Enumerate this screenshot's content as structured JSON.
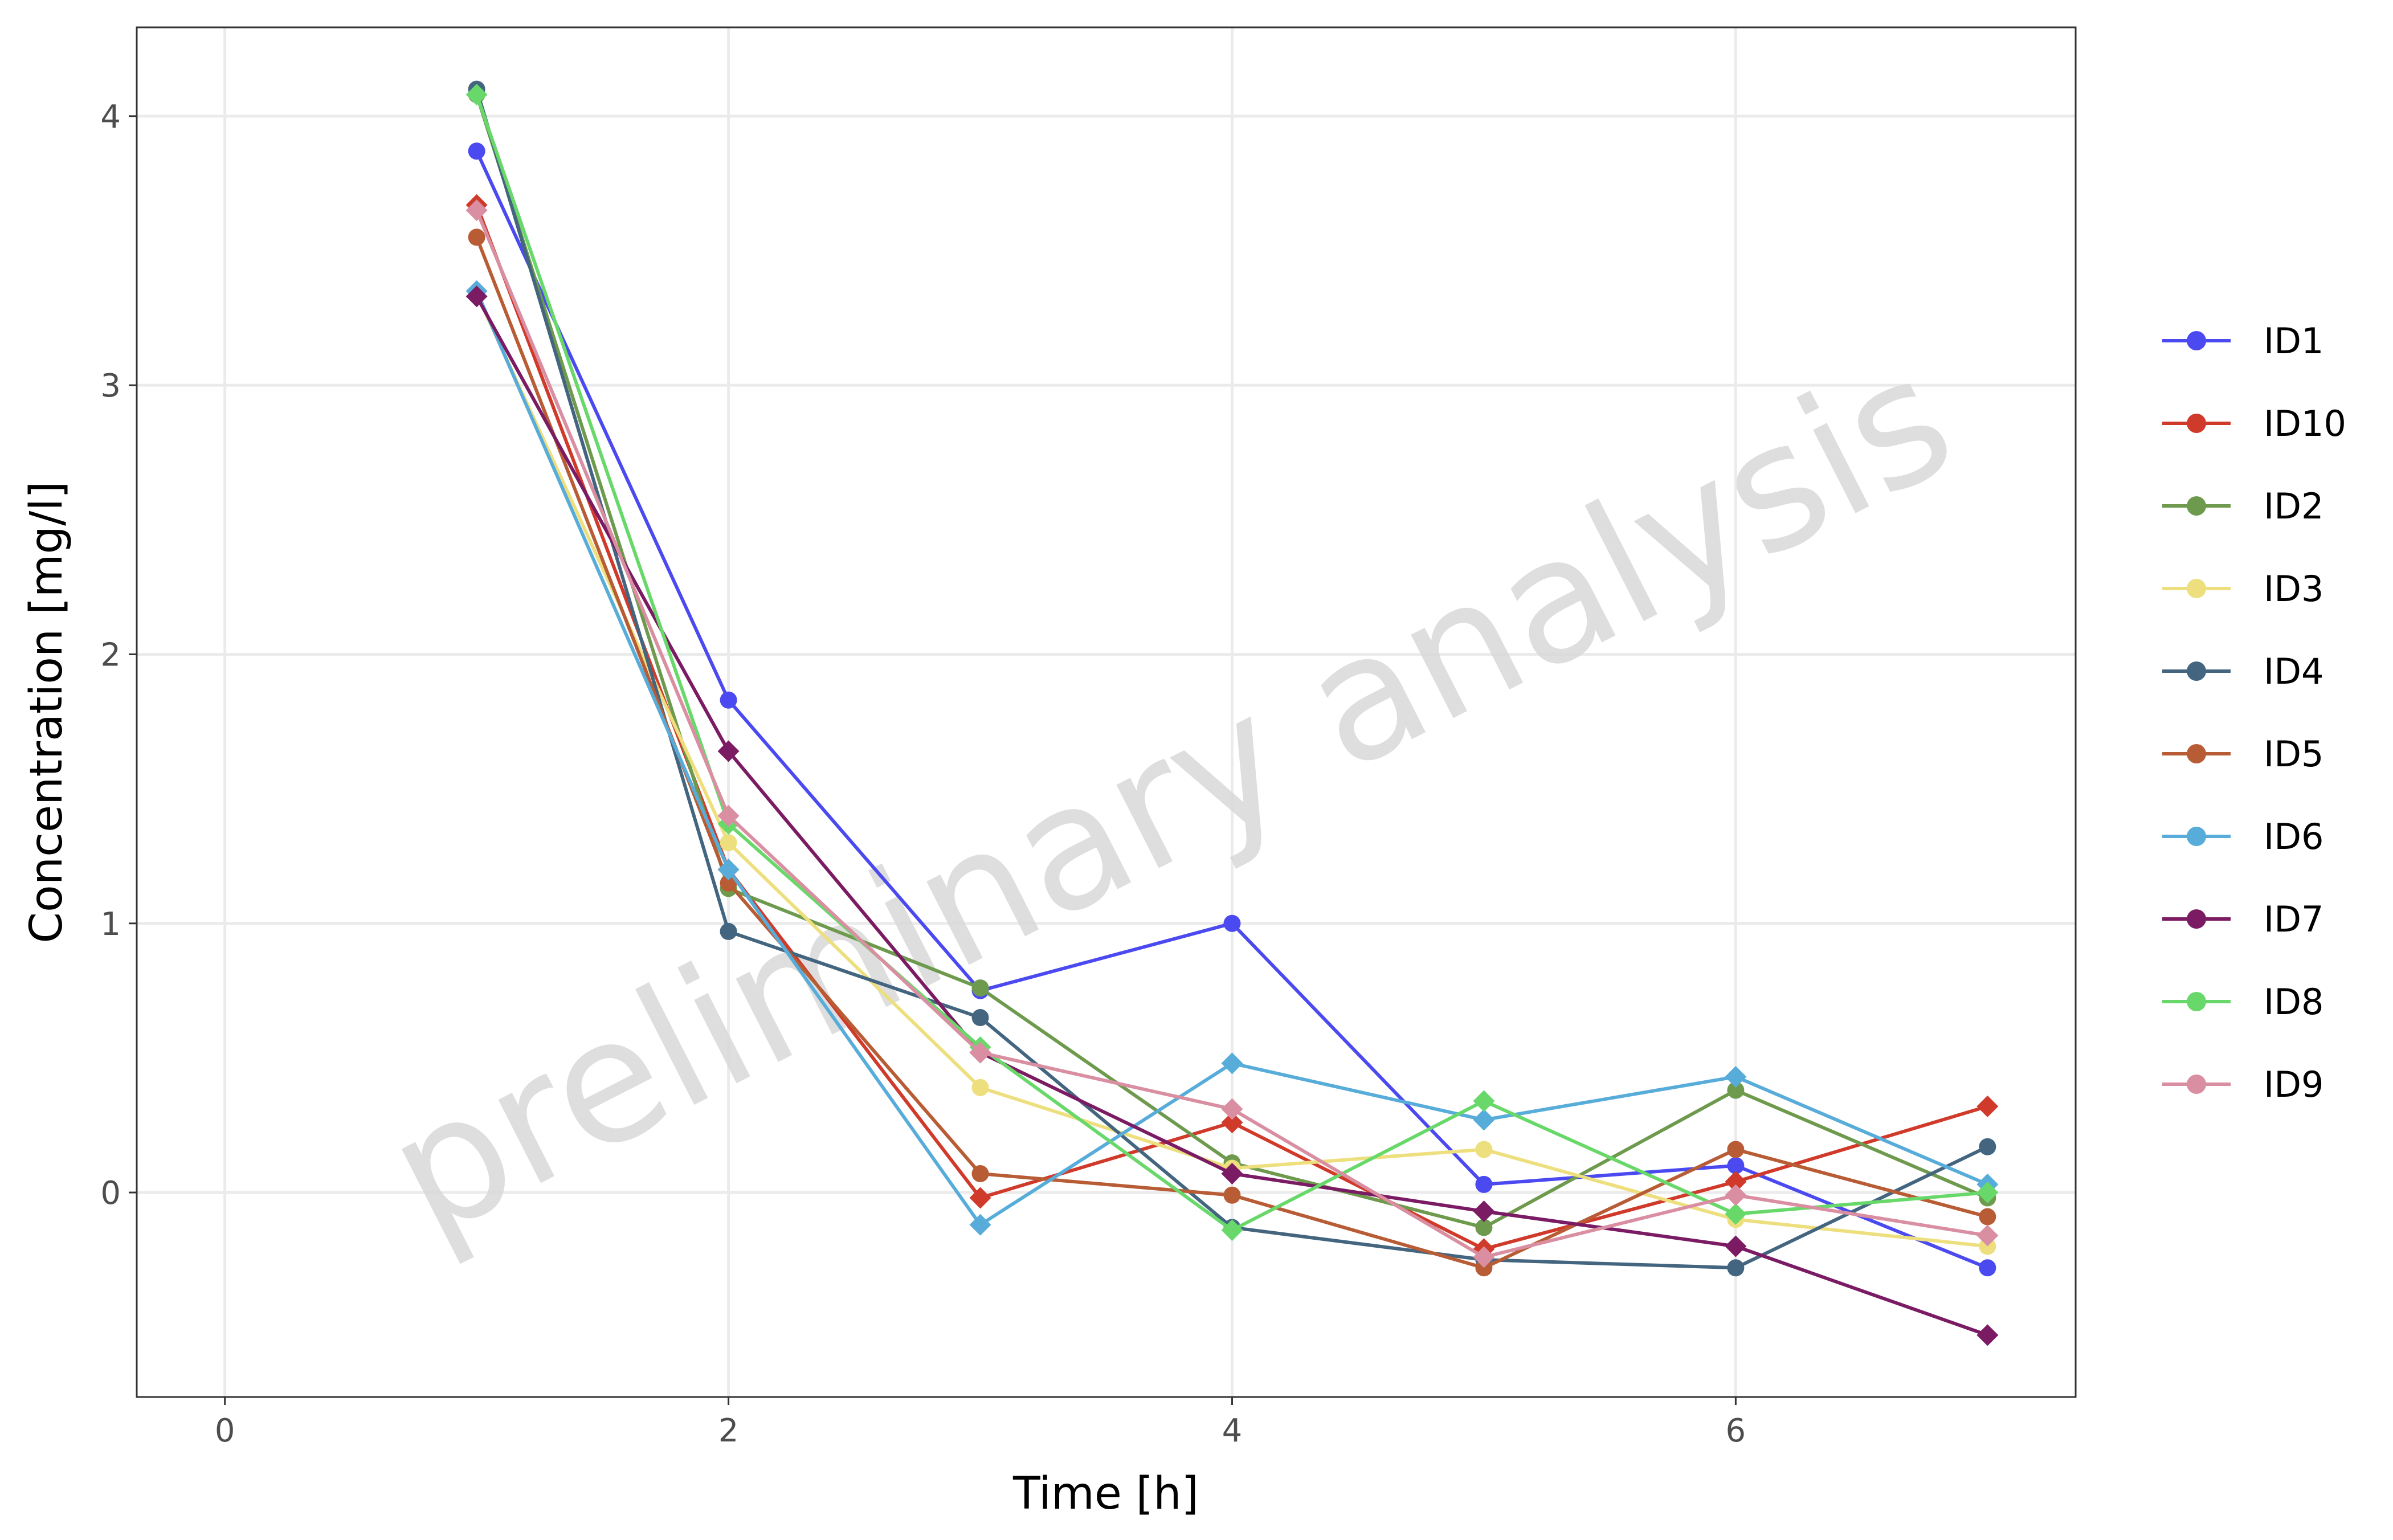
{
  "watermark": "preliminary analysis",
  "chart_data": {
    "type": "line",
    "title": "",
    "xlabel": "Time [h]",
    "ylabel": "Concentration [mg/l]",
    "xlim": [
      -0.35,
      7.35
    ],
    "ylim": [
      -0.76,
      4.33
    ],
    "x_ticks": [
      0,
      2,
      4,
      6
    ],
    "y_ticks": [
      0,
      1,
      2,
      3,
      4
    ],
    "grid": true,
    "legend_position": "right",
    "x": [
      1,
      2,
      3,
      4,
      5,
      6,
      7
    ],
    "series": [
      {
        "name": "ID1",
        "color": "#4B49F0",
        "marker": "circle",
        "values": [
          3.87,
          1.83,
          0.75,
          1.0,
          0.03,
          0.1,
          -0.28
        ]
      },
      {
        "name": "ID10",
        "color": "#D03A2B",
        "marker": "diamond",
        "values": [
          3.67,
          1.2,
          -0.02,
          0.26,
          -0.21,
          0.04,
          0.32
        ]
      },
      {
        "name": "ID2",
        "color": "#6E9A4E",
        "marker": "circle",
        "values": [
          4.08,
          1.13,
          0.76,
          0.11,
          -0.13,
          0.38,
          -0.02
        ]
      },
      {
        "name": "ID3",
        "color": "#EEDF7E",
        "marker": "circle",
        "values": [
          3.34,
          1.3,
          0.39,
          0.09,
          0.16,
          -0.1,
          -0.2
        ]
      },
      {
        "name": "ID4",
        "color": "#43657F",
        "marker": "circle",
        "values": [
          4.1,
          0.97,
          0.65,
          -0.13,
          -0.25,
          -0.28,
          0.17
        ]
      },
      {
        "name": "ID5",
        "color": "#B85C35",
        "marker": "circle",
        "values": [
          3.55,
          1.15,
          0.07,
          -0.01,
          -0.28,
          0.16,
          -0.09
        ]
      },
      {
        "name": "ID6",
        "color": "#58ACDA",
        "marker": "diamond",
        "values": [
          3.35,
          1.2,
          -0.12,
          0.48,
          0.27,
          0.43,
          0.03
        ]
      },
      {
        "name": "ID7",
        "color": "#7A1B63",
        "marker": "diamond",
        "values": [
          3.33,
          1.64,
          0.52,
          0.07,
          -0.07,
          -0.2,
          -0.53
        ]
      },
      {
        "name": "ID8",
        "color": "#69D86A",
        "marker": "diamond",
        "values": [
          4.08,
          1.37,
          0.54,
          -0.14,
          0.34,
          -0.08,
          0.0
        ]
      },
      {
        "name": "ID9",
        "color": "#D98FA1",
        "marker": "diamond",
        "values": [
          3.65,
          1.4,
          0.52,
          0.31,
          -0.24,
          -0.01,
          -0.16
        ]
      }
    ]
  }
}
